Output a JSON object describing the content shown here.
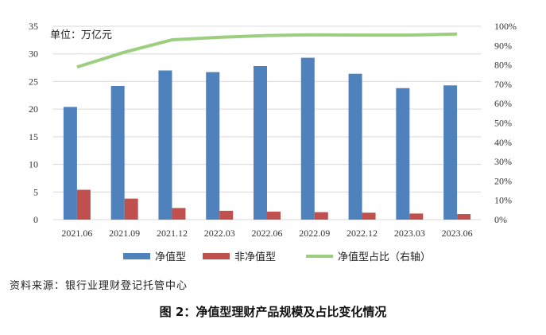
{
  "chart_data": {
    "type": "bar",
    "unit_label": "单位：万亿元",
    "categories": [
      "2021.06",
      "2021.09",
      "2021.12",
      "2022.03",
      "2022.06",
      "2022.09",
      "2022.12",
      "2023.03",
      "2023.06"
    ],
    "series": [
      {
        "name": "净值型",
        "type": "bar",
        "axis": "left",
        "color": "#4f81bd",
        "values": [
          20.4,
          24.2,
          27.0,
          26.7,
          27.8,
          29.3,
          26.4,
          23.8,
          24.3
        ]
      },
      {
        "name": "非净值型",
        "type": "bar",
        "axis": "left",
        "color": "#c0504d",
        "values": [
          5.4,
          3.8,
          2.1,
          1.6,
          1.45,
          1.35,
          1.25,
          1.1,
          1.0
        ]
      },
      {
        "name": "净值型占比（右轴）",
        "type": "line",
        "axis": "right",
        "color": "#9bcf7f",
        "values": [
          78.9,
          86.6,
          93.0,
          94.3,
          95.2,
          95.6,
          95.4,
          95.4,
          96.0
        ]
      }
    ],
    "ylim": [
      0,
      35
    ],
    "yticks": [
      "0",
      "5",
      "10",
      "15",
      "20",
      "25",
      "30",
      "35"
    ],
    "y2lim": [
      0,
      100
    ],
    "y2ticks": [
      "0%",
      "10%",
      "20%",
      "30%",
      "40%",
      "50%",
      "60%",
      "70%",
      "80%",
      "90%",
      "100%"
    ],
    "grid": true,
    "legend": "bottom"
  },
  "source": "资料来源：银行业理财登记托管中心",
  "caption": "图 2：净值型理财产品规模及占比变化情况"
}
